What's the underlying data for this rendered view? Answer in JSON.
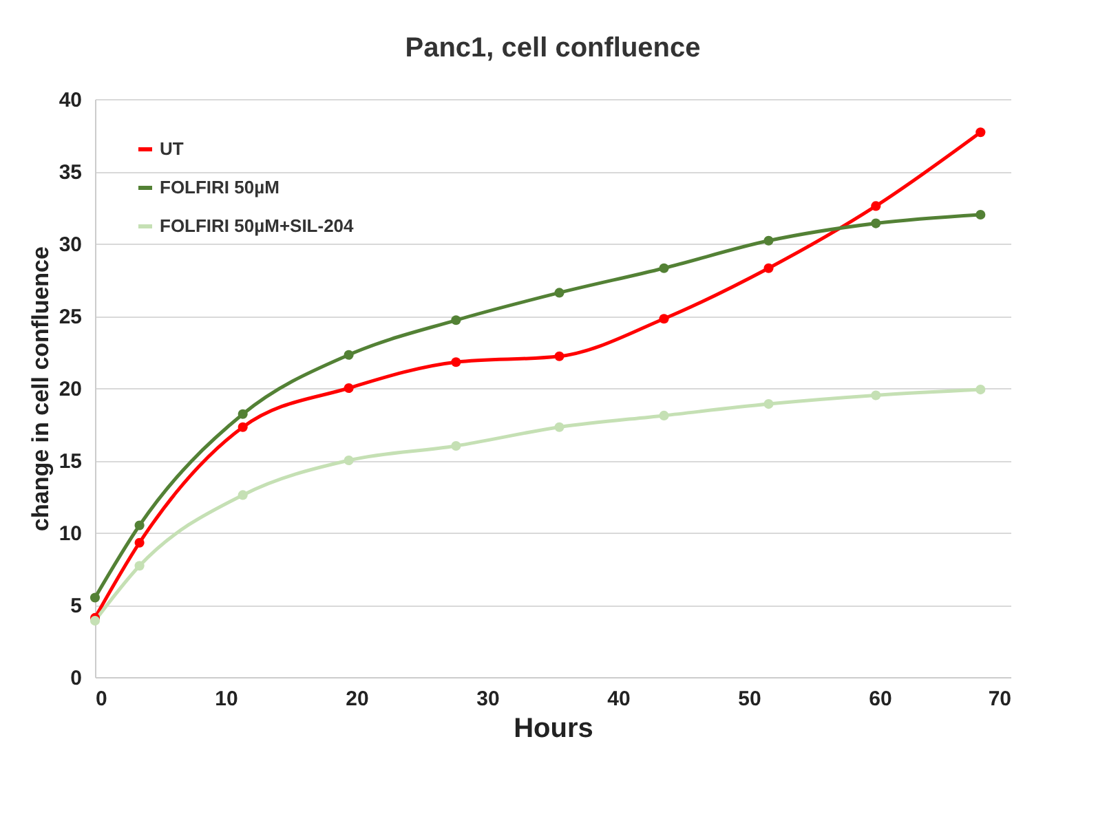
{
  "chart_data": {
    "type": "line",
    "title": "Panc1, cell confluence",
    "xlabel": "Hours",
    "ylabel": "change in cell confluence",
    "x": [
      0,
      3.4,
      11.3,
      19.4,
      27.6,
      35.5,
      43.5,
      51.5,
      59.7,
      67.7
    ],
    "series": [
      {
        "name": "UT",
        "color": "#ff0000",
        "values": [
          4.1,
          9.3,
          17.3,
          20.0,
          21.8,
          22.2,
          24.8,
          28.3,
          32.6,
          37.7
        ]
      },
      {
        "name": "FOLFIRI 50µM",
        "color": "#538135",
        "values": [
          5.5,
          10.5,
          18.2,
          22.3,
          24.7,
          26.6,
          28.3,
          30.2,
          31.4,
          32.0
        ]
      },
      {
        "name": "FOLFIRI 50µM+SIL-204",
        "color": "#c5e0b4",
        "values": [
          3.9,
          7.7,
          12.6,
          15.0,
          16.0,
          17.3,
          18.1,
          18.9,
          19.5,
          19.9
        ]
      }
    ],
    "xlim": [
      0,
      70
    ],
    "xticks": [
      0,
      10,
      20,
      30,
      40,
      50,
      60,
      70
    ],
    "ylim": [
      0,
      40
    ],
    "yticks": [
      0,
      5,
      10,
      15,
      20,
      25,
      30,
      35,
      40
    ],
    "grid": "y",
    "legend": "top left",
    "marker": "circle",
    "line_style": "solid"
  }
}
